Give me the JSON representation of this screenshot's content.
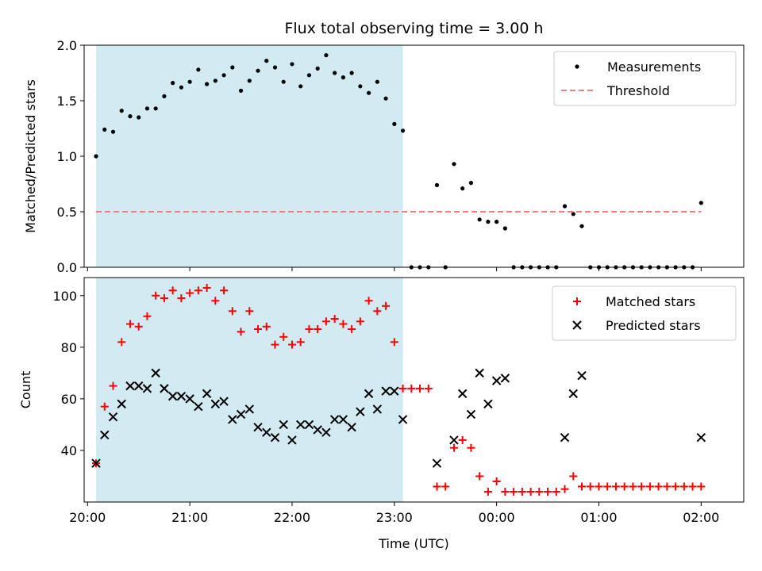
{
  "chart_data": [
    {
      "type": "scatter",
      "title": "Flux total observing time = 3.00 h",
      "xlabel": "",
      "ylabel": "Matched/Predicted stars",
      "ylim": [
        0,
        2.0
      ],
      "yticks": [
        "0.0",
        "0.5",
        "1.0",
        "1.5",
        "2.0"
      ],
      "xlim": [
        "19:58",
        "02:25"
      ],
      "shaded_span": {
        "start": "20:05",
        "end": "23:05",
        "color": "#add8e6"
      },
      "legend": {
        "placement": "top-right",
        "entries": [
          "Measurements",
          "Threshold"
        ]
      },
      "threshold": {
        "name": "Threshold",
        "value": 0.5,
        "x_start": "20:05",
        "x_end": "02:00",
        "color": "#f08080",
        "style": "dashed"
      },
      "series": [
        {
          "name": "Measurements",
          "marker": "dot",
          "color": "#000000",
          "points": [
            [
              "20:05",
              1.0
            ],
            [
              "20:10",
              1.24
            ],
            [
              "20:15",
              1.22
            ],
            [
              "20:20",
              1.41
            ],
            [
              "20:25",
              1.36
            ],
            [
              "20:30",
              1.35
            ],
            [
              "20:35",
              1.43
            ],
            [
              "20:40",
              1.43
            ],
            [
              "20:45",
              1.54
            ],
            [
              "20:50",
              1.66
            ],
            [
              "20:55",
              1.62
            ],
            [
              "21:00",
              1.67
            ],
            [
              "21:05",
              1.78
            ],
            [
              "21:10",
              1.65
            ],
            [
              "21:15",
              1.68
            ],
            [
              "21:20",
              1.73
            ],
            [
              "21:25",
              1.8
            ],
            [
              "21:30",
              1.59
            ],
            [
              "21:35",
              1.68
            ],
            [
              "21:40",
              1.77
            ],
            [
              "21:45",
              1.86
            ],
            [
              "21:50",
              1.8
            ],
            [
              "21:55",
              1.67
            ],
            [
              "22:00",
              1.83
            ],
            [
              "22:05",
              1.63
            ],
            [
              "22:10",
              1.73
            ],
            [
              "22:15",
              1.79
            ],
            [
              "22:20",
              1.91
            ],
            [
              "22:25",
              1.75
            ],
            [
              "22:30",
              1.71
            ],
            [
              "22:35",
              1.75
            ],
            [
              "22:40",
              1.63
            ],
            [
              "22:45",
              1.57
            ],
            [
              "22:50",
              1.67
            ],
            [
              "22:55",
              1.52
            ],
            [
              "23:00",
              1.29
            ],
            [
              "23:05",
              1.23
            ],
            [
              "23:10",
              0.0
            ],
            [
              "23:15",
              0.0
            ],
            [
              "23:20",
              0.0
            ],
            [
              "23:25",
              0.74
            ],
            [
              "23:30",
              0.0
            ],
            [
              "23:35",
              0.93
            ],
            [
              "23:40",
              0.71
            ],
            [
              "23:45",
              0.76
            ],
            [
              "23:50",
              0.43
            ],
            [
              "23:55",
              0.41
            ],
            [
              "00:00",
              0.41
            ],
            [
              "00:05",
              0.35
            ],
            [
              "00:10",
              0.0
            ],
            [
              "00:15",
              0.0
            ],
            [
              "00:20",
              0.0
            ],
            [
              "00:25",
              0.0
            ],
            [
              "00:30",
              0.0
            ],
            [
              "00:35",
              0.0
            ],
            [
              "00:40",
              0.55
            ],
            [
              "00:45",
              0.48
            ],
            [
              "00:50",
              0.37
            ],
            [
              "00:55",
              0.0
            ],
            [
              "01:00",
              0.0
            ],
            [
              "01:05",
              0.0
            ],
            [
              "01:10",
              0.0
            ],
            [
              "01:15",
              0.0
            ],
            [
              "01:20",
              0.0
            ],
            [
              "01:25",
              0.0
            ],
            [
              "01:30",
              0.0
            ],
            [
              "01:35",
              0.0
            ],
            [
              "01:40",
              0.0
            ],
            [
              "01:45",
              0.0
            ],
            [
              "01:50",
              0.0
            ],
            [
              "01:55",
              0.0
            ],
            [
              "02:00",
              0.58
            ]
          ]
        }
      ]
    },
    {
      "type": "scatter",
      "title": "",
      "xlabel": "Time (UTC)",
      "ylabel": "Count",
      "ylim": [
        20,
        107
      ],
      "yticks": [
        "40",
        "60",
        "80",
        "100"
      ],
      "xticks": [
        "20:00",
        "21:00",
        "22:00",
        "23:00",
        "00:00",
        "01:00",
        "02:00"
      ],
      "xlim": [
        "19:58",
        "02:25"
      ],
      "shaded_span": {
        "start": "20:05",
        "end": "23:05",
        "color": "#add8e6"
      },
      "legend": {
        "placement": "top-right",
        "entries": [
          "Matched stars",
          "Predicted stars"
        ]
      },
      "series": [
        {
          "name": "Matched stars",
          "marker": "plus",
          "color": "#ff0000",
          "points": [
            [
              "20:05",
              35
            ],
            [
              "20:10",
              57
            ],
            [
              "20:15",
              65
            ],
            [
              "20:20",
              82
            ],
            [
              "20:25",
              89
            ],
            [
              "20:30",
              88
            ],
            [
              "20:35",
              92
            ],
            [
              "20:40",
              100
            ],
            [
              "20:45",
              99
            ],
            [
              "20:50",
              102
            ],
            [
              "20:55",
              99
            ],
            [
              "21:00",
              101
            ],
            [
              "21:05",
              102
            ],
            [
              "21:10",
              103
            ],
            [
              "21:15",
              98
            ],
            [
              "21:20",
              102
            ],
            [
              "21:25",
              94
            ],
            [
              "21:30",
              86
            ],
            [
              "21:35",
              94
            ],
            [
              "21:40",
              87
            ],
            [
              "21:45",
              88
            ],
            [
              "21:50",
              81
            ],
            [
              "21:55",
              84
            ],
            [
              "22:00",
              81
            ],
            [
              "22:05",
              82
            ],
            [
              "22:10",
              87
            ],
            [
              "22:15",
              87
            ],
            [
              "22:20",
              90
            ],
            [
              "22:25",
              91
            ],
            [
              "22:30",
              89
            ],
            [
              "22:35",
              87
            ],
            [
              "22:40",
              90
            ],
            [
              "22:45",
              98
            ],
            [
              "22:50",
              94
            ],
            [
              "22:55",
              96
            ],
            [
              "23:00",
              82
            ],
            [
              "23:05",
              64
            ],
            [
              "23:10",
              64
            ],
            [
              "23:15",
              64
            ],
            [
              "23:20",
              64
            ],
            [
              "23:25",
              26
            ],
            [
              "23:30",
              26
            ],
            [
              "23:35",
              41
            ],
            [
              "23:40",
              44
            ],
            [
              "23:45",
              41
            ],
            [
              "23:50",
              30
            ],
            [
              "23:55",
              24
            ],
            [
              "00:00",
              28
            ],
            [
              "00:05",
              24
            ],
            [
              "00:10",
              24
            ],
            [
              "00:15",
              24
            ],
            [
              "00:20",
              24
            ],
            [
              "00:25",
              24
            ],
            [
              "00:30",
              24
            ],
            [
              "00:35",
              24
            ],
            [
              "00:40",
              25
            ],
            [
              "00:45",
              30
            ],
            [
              "00:50",
              26
            ],
            [
              "00:55",
              26
            ],
            [
              "01:00",
              26
            ],
            [
              "01:05",
              26
            ],
            [
              "01:10",
              26
            ],
            [
              "01:15",
              26
            ],
            [
              "01:20",
              26
            ],
            [
              "01:25",
              26
            ],
            [
              "01:30",
              26
            ],
            [
              "01:35",
              26
            ],
            [
              "01:40",
              26
            ],
            [
              "01:45",
              26
            ],
            [
              "01:50",
              26
            ],
            [
              "01:55",
              26
            ],
            [
              "02:00",
              26
            ]
          ]
        },
        {
          "name": "Predicted stars",
          "marker": "x",
          "color": "#000000",
          "points": [
            [
              "20:05",
              35
            ],
            [
              "20:10",
              46
            ],
            [
              "20:15",
              53
            ],
            [
              "20:20",
              58
            ],
            [
              "20:25",
              65
            ],
            [
              "20:30",
              65
            ],
            [
              "20:35",
              64
            ],
            [
              "20:40",
              70
            ],
            [
              "20:45",
              64
            ],
            [
              "20:50",
              61
            ],
            [
              "20:55",
              61
            ],
            [
              "21:00",
              60
            ],
            [
              "21:05",
              57
            ],
            [
              "21:10",
              62
            ],
            [
              "21:15",
              58
            ],
            [
              "21:20",
              59
            ],
            [
              "21:25",
              52
            ],
            [
              "21:30",
              54
            ],
            [
              "21:35",
              56
            ],
            [
              "21:40",
              49
            ],
            [
              "21:45",
              47
            ],
            [
              "21:50",
              45
            ],
            [
              "21:55",
              50
            ],
            [
              "22:00",
              44
            ],
            [
              "22:05",
              50
            ],
            [
              "22:10",
              50
            ],
            [
              "22:15",
              48
            ],
            [
              "22:20",
              47
            ],
            [
              "22:25",
              52
            ],
            [
              "22:30",
              52
            ],
            [
              "22:35",
              49
            ],
            [
              "22:40",
              55
            ],
            [
              "22:45",
              62
            ],
            [
              "22:50",
              56
            ],
            [
              "22:55",
              63
            ],
            [
              "23:00",
              63
            ],
            [
              "23:05",
              52
            ],
            [
              "23:25",
              35
            ],
            [
              "23:35",
              44
            ],
            [
              "23:40",
              62
            ],
            [
              "23:45",
              54
            ],
            [
              "23:50",
              70
            ],
            [
              "23:55",
              58
            ],
            [
              "00:00",
              67
            ],
            [
              "00:05",
              68
            ],
            [
              "00:40",
              45
            ],
            [
              "00:45",
              62
            ],
            [
              "00:50",
              69
            ],
            [
              "02:00",
              45
            ]
          ]
        }
      ]
    }
  ]
}
